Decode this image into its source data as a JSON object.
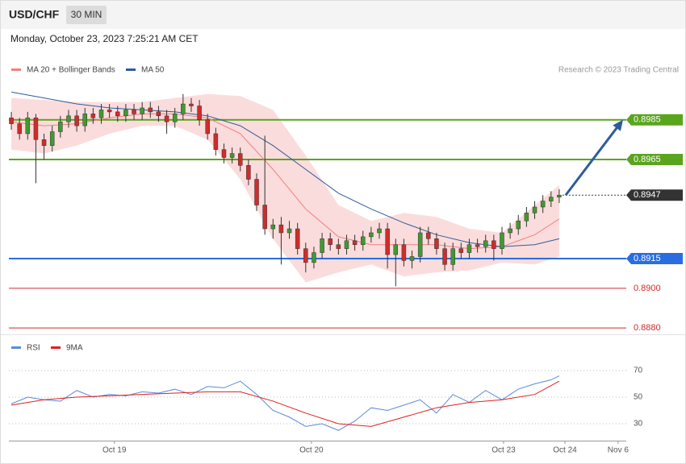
{
  "chart_data": [
    {
      "type": "candlestick",
      "title": "USD/CHF",
      "timeframe": "30 MIN",
      "subtitle": "Monday, October 23, 2023 7:25:21 AM CET",
      "source": "Research © 2023 Trading Central",
      "xlim": [
        -0.3,
        75.2
      ],
      "ylim": [
        0.8878,
        0.9017
      ],
      "up_color": "#3f9b2f",
      "down_color": "#d12b2b",
      "open": [
        0.8986,
        0.8983,
        0.8978,
        0.8986,
        0.8975,
        0.8972,
        0.8979,
        0.8984,
        0.8987,
        0.8982,
        0.8988,
        0.8986,
        0.899,
        0.8989,
        0.8987,
        0.899,
        0.8988,
        0.8991,
        0.8989,
        0.8987,
        0.8984,
        0.8988,
        0.8993,
        0.8992,
        0.8985,
        0.8978,
        0.897,
        0.8966,
        0.8968,
        0.8962,
        0.8955,
        0.8942,
        0.893,
        0.8932,
        0.8928,
        0.893,
        0.892,
        0.8913,
        0.8918,
        0.8925,
        0.8922,
        0.892,
        0.8924,
        0.8922,
        0.8926,
        0.8928,
        0.893,
        0.8917,
        0.8922,
        0.8914,
        0.8916,
        0.8928,
        0.8925,
        0.892,
        0.8912,
        0.892,
        0.8918,
        0.8922,
        0.8921,
        0.8924,
        0.892,
        0.8928,
        0.893,
        0.8934,
        0.8938,
        0.8941,
        0.8944,
        0.8946
      ],
      "high": [
        0.8989,
        0.8986,
        0.8989,
        0.8988,
        0.8978,
        0.8982,
        0.8987,
        0.899,
        0.899,
        0.8991,
        0.8991,
        0.8993,
        0.8993,
        0.8992,
        0.8993,
        0.8993,
        0.8994,
        0.8994,
        0.8992,
        0.899,
        0.8991,
        0.8998,
        0.8996,
        0.8995,
        0.8988,
        0.8981,
        0.8973,
        0.8971,
        0.8971,
        0.8965,
        0.8958,
        0.8977,
        0.8935,
        0.8936,
        0.8934,
        0.8933,
        0.8923,
        0.8921,
        0.8928,
        0.8928,
        0.8925,
        0.8927,
        0.8927,
        0.8929,
        0.8931,
        0.8933,
        0.8933,
        0.8925,
        0.8925,
        0.8919,
        0.8931,
        0.8931,
        0.8928,
        0.8923,
        0.8923,
        0.8923,
        0.8925,
        0.8925,
        0.8927,
        0.8927,
        0.8931,
        0.8933,
        0.8937,
        0.8941,
        0.8944,
        0.8947,
        0.8949,
        0.895
      ],
      "low": [
        0.898,
        0.8975,
        0.8975,
        0.8953,
        0.8965,
        0.8969,
        0.8976,
        0.8981,
        0.8979,
        0.8979,
        0.8983,
        0.8983,
        0.8986,
        0.8984,
        0.8984,
        0.8985,
        0.8985,
        0.8986,
        0.8984,
        0.8978,
        0.8981,
        0.8985,
        0.8989,
        0.8982,
        0.8975,
        0.8967,
        0.8963,
        0.8963,
        0.8959,
        0.8952,
        0.8939,
        0.8927,
        0.8925,
        0.8912,
        0.8925,
        0.8917,
        0.8908,
        0.891,
        0.8915,
        0.8919,
        0.8917,
        0.8917,
        0.8919,
        0.8919,
        0.8923,
        0.8925,
        0.891,
        0.8901,
        0.8911,
        0.891,
        0.8913,
        0.8922,
        0.8917,
        0.8909,
        0.8909,
        0.8915,
        0.8915,
        0.8918,
        0.8918,
        0.8914,
        0.8917,
        0.8925,
        0.8927,
        0.8931,
        0.8935,
        0.8938,
        0.8941,
        0.8943
      ],
      "close": [
        0.8983,
        0.8978,
        0.8986,
        0.8975,
        0.8972,
        0.8979,
        0.8984,
        0.8987,
        0.8982,
        0.8988,
        0.8986,
        0.899,
        0.8989,
        0.8987,
        0.899,
        0.8988,
        0.8991,
        0.8989,
        0.8987,
        0.8984,
        0.8988,
        0.8993,
        0.8992,
        0.8985,
        0.8978,
        0.897,
        0.8966,
        0.8968,
        0.8962,
        0.8955,
        0.8942,
        0.893,
        0.8932,
        0.8928,
        0.893,
        0.892,
        0.8913,
        0.8918,
        0.8925,
        0.8922,
        0.892,
        0.8924,
        0.8922,
        0.8926,
        0.8928,
        0.893,
        0.8917,
        0.8922,
        0.8914,
        0.8916,
        0.8928,
        0.8925,
        0.892,
        0.8912,
        0.892,
        0.8918,
        0.8922,
        0.8921,
        0.8924,
        0.892,
        0.8928,
        0.893,
        0.8934,
        0.8938,
        0.8941,
        0.8944,
        0.8946,
        0.8947
      ],
      "bands": {
        "color": "#fbdcdc",
        "x": [
          0,
          4,
          8,
          12,
          16,
          20,
          24,
          28,
          32,
          36,
          40,
          44,
          48,
          52,
          56,
          60,
          64,
          67
        ],
        "upper": [
          0.8996,
          0.8995,
          0.8994,
          0.8994,
          0.8994,
          0.8996,
          0.8998,
          0.8997,
          0.899,
          0.8967,
          0.8942,
          0.8934,
          0.8938,
          0.8936,
          0.893,
          0.8928,
          0.8942,
          0.8952
        ],
        "lower": [
          0.897,
          0.8968,
          0.8972,
          0.8978,
          0.8982,
          0.8982,
          0.8975,
          0.8955,
          0.8925,
          0.8903,
          0.8908,
          0.8912,
          0.8906,
          0.8908,
          0.8909,
          0.8913,
          0.8912,
          0.8916
        ]
      },
      "series": [
        {
          "name": "MA 20 + Bollinger Bands",
          "color": "#f08080",
          "x": [
            0,
            4,
            8,
            12,
            16,
            20,
            24,
            28,
            32,
            36,
            40,
            44,
            48,
            52,
            56,
            60,
            64,
            67
          ],
          "values": [
            0.8984,
            0.8982,
            0.8983,
            0.8986,
            0.8988,
            0.8988,
            0.8986,
            0.8978,
            0.896,
            0.894,
            0.8926,
            0.8922,
            0.8922,
            0.8922,
            0.892,
            0.8921,
            0.8927,
            0.8935
          ]
        },
        {
          "name": "MA 50",
          "color": "#2e5c9a",
          "x": [
            0,
            4,
            8,
            12,
            16,
            20,
            24,
            28,
            32,
            36,
            40,
            44,
            48,
            52,
            56,
            60,
            64,
            67
          ],
          "values": [
            0.8999,
            0.8996,
            0.8993,
            0.8991,
            0.899,
            0.8989,
            0.8987,
            0.8982,
            0.8972,
            0.896,
            0.8948,
            0.894,
            0.8933,
            0.8927,
            0.8923,
            0.8921,
            0.8922,
            0.8925
          ]
        }
      ],
      "levels": [
        {
          "value": 0.8985,
          "color": "#5aa51e",
          "boxed": true,
          "dashed": false
        },
        {
          "value": 0.8965,
          "color": "#5aa51e",
          "boxed": true,
          "dashed": false
        },
        {
          "value": 0.8947,
          "color": "#333333",
          "boxed": true,
          "dashed": true
        },
        {
          "value": 0.8915,
          "color": "#2a6de0",
          "boxed": true,
          "dashed": false
        },
        {
          "value": 0.89,
          "label": "0.8900",
          "color": "#d12b2b",
          "boxed": false,
          "dashed": false
        },
        {
          "value": 0.888,
          "label": "0.8880",
          "color": "#d12b2b",
          "boxed": false,
          "dashed": false
        }
      ]
    },
    {
      "type": "line",
      "xlim": [
        -0.3,
        75.2
      ],
      "ylim": [
        18.5,
        94.2
      ],
      "yticks": [
        30,
        50,
        70
      ],
      "grid": true,
      "xticks": [
        {
          "value": 12.6,
          "label": "Oct 19"
        },
        {
          "value": 36.7,
          "label": "Oct 20"
        },
        {
          "value": 60.2,
          "label": "Oct 23"
        },
        {
          "value": 67.7,
          "label": "Oct 24"
        },
        {
          "value": 74.2,
          "label": "Nov 6"
        }
      ],
      "series": [
        {
          "name": "RSI",
          "color": "#5b8bd9",
          "x": [
            0,
            2,
            4,
            6,
            8,
            10,
            12,
            14,
            16,
            18,
            20,
            22,
            24,
            26,
            28,
            30,
            32,
            34,
            36,
            38,
            40,
            42,
            44,
            46,
            48,
            50,
            52,
            54,
            56,
            58,
            60,
            62,
            64,
            66,
            67
          ],
          "values": [
            45,
            50,
            48,
            47,
            55,
            50,
            52,
            51,
            54,
            53,
            56,
            52,
            58,
            57,
            62,
            52,
            40,
            35,
            28,
            30,
            25,
            32,
            42,
            40,
            44,
            48,
            38,
            52,
            46,
            55,
            48,
            56,
            60,
            63,
            66
          ]
        },
        {
          "name": "9MA",
          "color": "#e02020",
          "x": [
            0,
            4,
            8,
            12,
            16,
            20,
            24,
            28,
            32,
            36,
            40,
            44,
            48,
            52,
            56,
            60,
            64,
            67
          ],
          "values": [
            44,
            48,
            50,
            51,
            52,
            53,
            54,
            54,
            47,
            38,
            30,
            28,
            35,
            42,
            46,
            48,
            52,
            62
          ]
        }
      ]
    }
  ]
}
